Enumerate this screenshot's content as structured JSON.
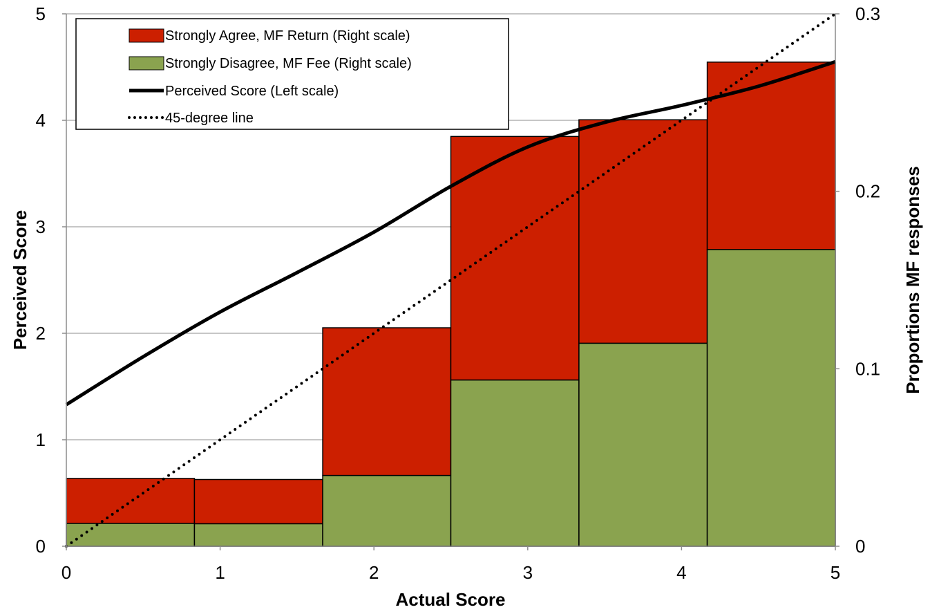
{
  "chart_data": {
    "type": "bar",
    "title": "",
    "xlabel": "Actual Score",
    "ylabel_left": "Perceived Score",
    "ylabel_right": "Proportions MF responses",
    "xlim": [
      0,
      5
    ],
    "ylim_left": [
      0,
      5
    ],
    "ylim_right": [
      0,
      0.3
    ],
    "x_ticks": [
      "0",
      "1",
      "2",
      "3",
      "4",
      "5"
    ],
    "y_ticks_left": [
      "0",
      "1",
      "2",
      "3",
      "4",
      "5"
    ],
    "y_ticks_right": [
      "0",
      "0.1",
      "0.2",
      "0.3"
    ],
    "grid": true,
    "legend_position": "top-left",
    "bins": [
      {
        "x0": 0.0,
        "x1": 0.833
      },
      {
        "x0": 0.833,
        "x1": 1.667
      },
      {
        "x0": 1.667,
        "x1": 2.5
      },
      {
        "x0": 2.5,
        "x1": 3.333
      },
      {
        "x0": 3.333,
        "x1": 4.167
      },
      {
        "x0": 4.167,
        "x1": 5.0
      }
    ],
    "series": [
      {
        "name": "Strongly Agree, MF Return (Right scale)",
        "kind": "stacked-bar",
        "axis": "right",
        "color": "#cc1f00",
        "values": [
          0.0253,
          0.0249,
          0.0832,
          0.1372,
          0.1259,
          0.1056
        ]
      },
      {
        "name": "Strongly Disagree, MF Fee (Right scale)",
        "kind": "stacked-bar",
        "axis": "right",
        "color": "#8aa34f",
        "values": [
          0.0129,
          0.0127,
          0.0399,
          0.0937,
          0.1144,
          0.1672
        ]
      },
      {
        "name": "Perceived Score (Left scale)",
        "kind": "line",
        "axis": "left",
        "color": "#000000",
        "x": [
          0.0,
          0.5,
          1.0,
          1.5,
          2.0,
          2.5,
          3.0,
          3.5,
          4.0,
          4.5,
          5.0
        ],
        "y": [
          1.33,
          1.78,
          2.2,
          2.57,
          2.95,
          3.38,
          3.75,
          3.98,
          4.14,
          4.32,
          4.55
        ]
      },
      {
        "name": "45-degree line",
        "kind": "dotted-line",
        "axis": "left",
        "color": "#000000",
        "x": [
          0,
          5
        ],
        "y": [
          0,
          5
        ]
      }
    ]
  }
}
